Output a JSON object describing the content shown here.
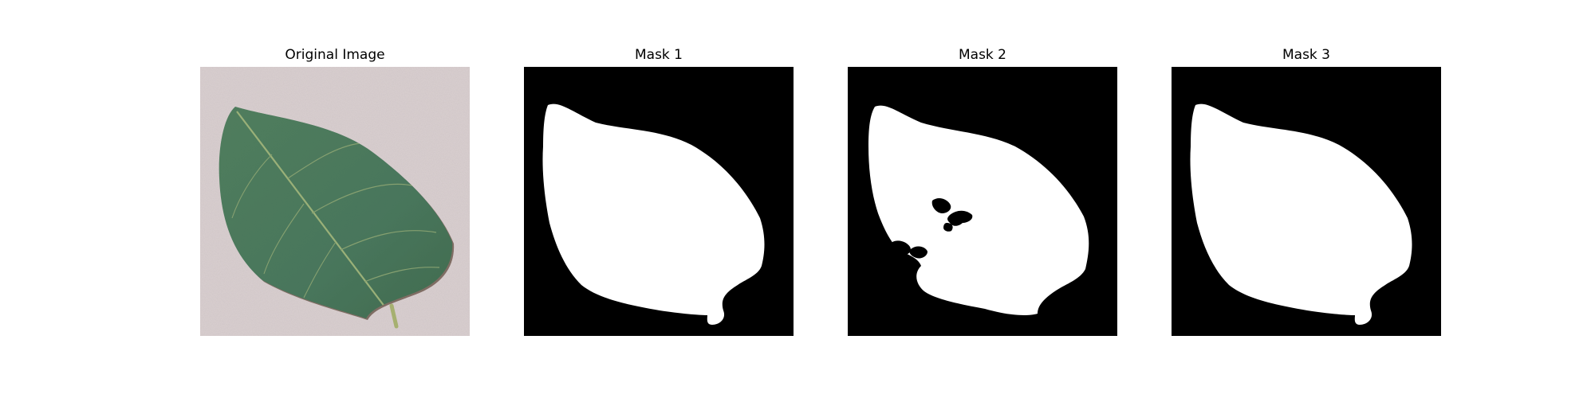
{
  "figure": {
    "panels": [
      {
        "title": "Original Image",
        "kind": "photo"
      },
      {
        "title": "Mask 1",
        "kind": "mask"
      },
      {
        "title": "Mask 2",
        "kind": "mask"
      },
      {
        "title": "Mask 3",
        "kind": "mask"
      }
    ]
  },
  "colors": {
    "photo_background": "#d9cfd0",
    "leaf_dark": "#3f6a4f",
    "leaf_mid": "#4f7b5c",
    "leaf_vein": "#8aa56a",
    "leaf_edge": "#5a4536",
    "mask_background": "#000000",
    "mask_foreground": "#ffffff"
  }
}
